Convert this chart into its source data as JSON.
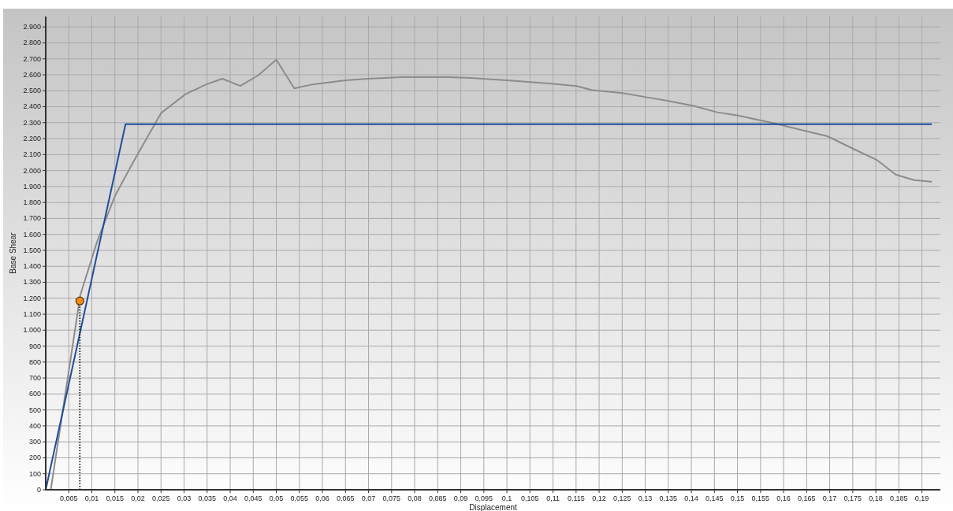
{
  "chart_data": {
    "type": "line",
    "xlabel": "Displacement",
    "ylabel": "Base Shear",
    "xlim": [
      0,
      0.194
    ],
    "ylim": [
      0,
      2965
    ],
    "xticks": [
      {
        "value": 0.005,
        "label": "0,005"
      },
      {
        "value": 0.01,
        "label": "0,01"
      },
      {
        "value": 0.015,
        "label": "0,015"
      },
      {
        "value": 0.02,
        "label": "0,02"
      },
      {
        "value": 0.025,
        "label": "0,025"
      },
      {
        "value": 0.03,
        "label": "0,03"
      },
      {
        "value": 0.035,
        "label": "0,035"
      },
      {
        "value": 0.04,
        "label": "0,04"
      },
      {
        "value": 0.045,
        "label": "0,045"
      },
      {
        "value": 0.05,
        "label": "0,05"
      },
      {
        "value": 0.055,
        "label": "0,055"
      },
      {
        "value": 0.06,
        "label": "0,06"
      },
      {
        "value": 0.065,
        "label": "0,065"
      },
      {
        "value": 0.07,
        "label": "0,07"
      },
      {
        "value": 0.075,
        "label": "0,075"
      },
      {
        "value": 0.08,
        "label": "0,08"
      },
      {
        "value": 0.085,
        "label": "0,085"
      },
      {
        "value": 0.09,
        "label": "0,09"
      },
      {
        "value": 0.095,
        "label": "0,095"
      },
      {
        "value": 0.1,
        "label": "0,1"
      },
      {
        "value": 0.105,
        "label": "0,105"
      },
      {
        "value": 0.11,
        "label": "0,11"
      },
      {
        "value": 0.115,
        "label": "0,115"
      },
      {
        "value": 0.12,
        "label": "0,12"
      },
      {
        "value": 0.125,
        "label": "0,125"
      },
      {
        "value": 0.13,
        "label": "0,13"
      },
      {
        "value": 0.135,
        "label": "0,135"
      },
      {
        "value": 0.14,
        "label": "0,14"
      },
      {
        "value": 0.145,
        "label": "0,145"
      },
      {
        "value": 0.15,
        "label": "0,15"
      },
      {
        "value": 0.155,
        "label": "0,155"
      },
      {
        "value": 0.16,
        "label": "0,16"
      },
      {
        "value": 0.165,
        "label": "0,165"
      },
      {
        "value": 0.17,
        "label": "0,17"
      },
      {
        "value": 0.175,
        "label": "0,175"
      },
      {
        "value": 0.18,
        "label": "0,18"
      },
      {
        "value": 0.185,
        "label": "0,185"
      },
      {
        "value": 0.19,
        "label": "0,19"
      }
    ],
    "yticks": [
      0,
      100,
      200,
      300,
      400,
      500,
      600,
      700,
      800,
      900,
      {
        "value": 1000,
        "label": "1.000"
      },
      {
        "value": 1100,
        "label": "1.100"
      },
      {
        "value": 1200,
        "label": "1.200"
      },
      {
        "value": 1300,
        "label": "1.300"
      },
      {
        "value": 1400,
        "label": "1.400"
      },
      {
        "value": 1500,
        "label": "1.500"
      },
      {
        "value": 1600,
        "label": "1.600"
      },
      {
        "value": 1700,
        "label": "1.700"
      },
      {
        "value": 1800,
        "label": "1.800"
      },
      {
        "value": 1900,
        "label": "1.900"
      },
      {
        "value": 2000,
        "label": "2.000"
      },
      {
        "value": 2100,
        "label": "2.100"
      },
      {
        "value": 2200,
        "label": "2.200"
      },
      {
        "value": 2300,
        "label": "2.300"
      },
      {
        "value": 2400,
        "label": "2.400"
      },
      {
        "value": 2500,
        "label": "2.500"
      },
      {
        "value": 2600,
        "label": "2.600"
      },
      {
        "value": 2700,
        "label": "2.700"
      },
      {
        "value": 2800,
        "label": "2.800"
      },
      {
        "value": 2900,
        "label": "2.900"
      }
    ],
    "grid": true,
    "series": [
      {
        "color": "#8c8c8c",
        "x": [
          0.0011,
          0.0075,
          0.0112,
          0.015,
          0.0191,
          0.025,
          0.0304,
          0.0348,
          0.0383,
          0.0422,
          0.046,
          0.05,
          0.0539,
          0.0579,
          0.065,
          0.0698,
          0.0772,
          0.0875,
          0.0921,
          0.1,
          0.1097,
          0.1151,
          0.1183,
          0.1251,
          0.1302,
          0.1353,
          0.1405,
          0.1456,
          0.1502,
          0.1541,
          0.1581,
          0.1638,
          0.1695,
          0.1752,
          0.1803,
          0.1843,
          0.1883,
          0.192
        ],
        "values": [
          0,
          1220,
          1560,
          1840,
          2060,
          2360,
          2480,
          2540,
          2575,
          2530,
          2595,
          2695,
          2515,
          2540,
          2565,
          2575,
          2585,
          2585,
          2580,
          2565,
          2545,
          2530,
          2505,
          2485,
          2460,
          2435,
          2405,
          2365,
          2345,
          2320,
          2295,
          2255,
          2215,
          2135,
          2065,
          1975,
          1940,
          1930
        ]
      },
      {
        "color": "#1f4e9c",
        "x": [
          0,
          0.0173,
          0.192
        ],
        "values": [
          0,
          2290,
          2290
        ]
      },
      {
        "color": "#000000",
        "line_style": "dotted",
        "x": [
          0.0074,
          0.0074
        ],
        "values": [
          0,
          1183
        ]
      },
      {
        "type": "scatter",
        "color": "#f08a1c",
        "marker": "circle",
        "x": [
          0.0074
        ],
        "values": [
          1183
        ]
      }
    ]
  }
}
